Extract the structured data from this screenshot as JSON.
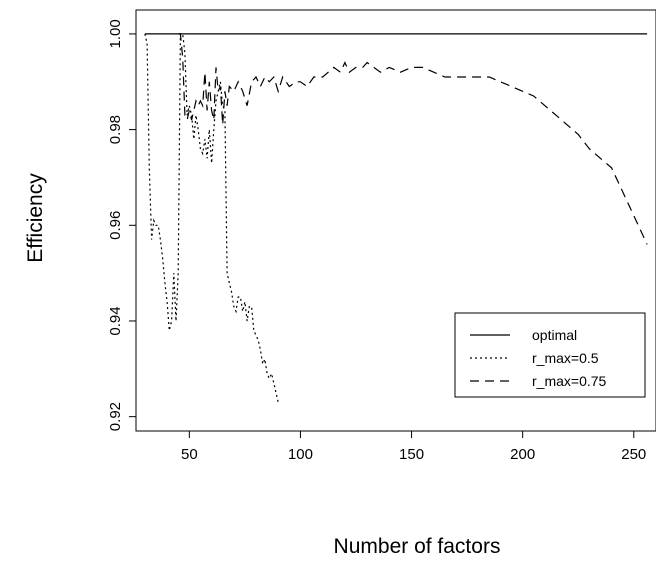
{
  "chart_data": {
    "type": "line",
    "title": "",
    "xlabel": "Number of factors",
    "ylabel": "Efficiency",
    "xlim": [
      26,
      260
    ],
    "ylim": [
      0.917,
      1.005
    ],
    "x_ticks": [
      50,
      100,
      150,
      200,
      250
    ],
    "x_tick_labels": [
      "50",
      "100",
      "150",
      "200",
      "250"
    ],
    "y_ticks": [
      0.92,
      0.94,
      0.96,
      0.98,
      1.0
    ],
    "y_tick_labels": [
      "0.92",
      "0.94",
      "0.96",
      "0.98",
      "1.00"
    ],
    "grid": false,
    "legend_position": "bottom-right",
    "series": [
      {
        "name": "optimal",
        "line_style": "solid",
        "color": "#000000",
        "x": [
          30,
          256
        ],
        "y": [
          1.0,
          1.0
        ]
      },
      {
        "name": "r_max=0.5",
        "line_style": "dotted",
        "color": "#000000",
        "x": [
          30,
          31,
          32,
          33,
          34,
          35,
          36,
          37,
          38,
          39,
          40,
          41,
          42,
          43,
          44,
          45,
          46,
          47,
          48,
          49,
          50,
          51,
          52,
          53,
          54,
          55,
          56,
          57,
          58,
          59,
          60,
          61,
          62,
          63,
          64,
          65,
          66,
          67,
          68,
          69,
          70,
          71,
          72,
          73,
          74,
          75,
          76,
          77,
          78,
          79,
          80,
          81,
          82,
          83,
          84,
          85,
          86,
          87,
          88,
          89,
          90
        ],
        "y": [
          1.0,
          0.998,
          0.972,
          0.957,
          0.961,
          0.96,
          0.96,
          0.957,
          0.953,
          0.948,
          0.944,
          0.938,
          0.94,
          0.95,
          0.94,
          0.95,
          1.0,
          1.0,
          0.996,
          0.983,
          0.985,
          0.983,
          0.978,
          0.983,
          0.98,
          0.976,
          0.975,
          0.978,
          0.974,
          0.98,
          0.973,
          0.98,
          0.986,
          0.988,
          0.99,
          0.985,
          0.984,
          0.95,
          0.948,
          0.946,
          0.943,
          0.942,
          0.945,
          0.945,
          0.942,
          0.944,
          0.94,
          0.943,
          0.943,
          0.938,
          0.937,
          0.936,
          0.934,
          0.931,
          0.932,
          0.929,
          0.928,
          0.929,
          0.927,
          0.925,
          0.923
        ]
      },
      {
        "name": "r_max=0.75",
        "line_style": "dashed",
        "color": "#000000",
        "x": [
          45,
          46,
          47,
          48,
          49,
          50,
          51,
          52,
          53,
          54,
          55,
          56,
          57,
          58,
          59,
          60,
          61,
          62,
          63,
          64,
          65,
          66,
          67,
          68,
          70,
          72,
          74,
          76,
          78,
          80,
          82,
          84,
          86,
          88,
          90,
          92,
          95,
          98,
          100,
          103,
          106,
          110,
          115,
          118,
          120,
          122,
          125,
          128,
          130,
          133,
          136,
          140,
          145,
          150,
          155,
          160,
          165,
          170,
          175,
          180,
          185,
          190,
          195,
          200,
          205,
          210,
          215,
          220,
          225,
          230,
          235,
          240,
          245,
          250,
          256
        ],
        "y": [
          1.0,
          1.0,
          0.995,
          0.983,
          0.982,
          0.984,
          0.982,
          0.984,
          0.986,
          0.985,
          0.986,
          0.985,
          0.992,
          0.984,
          0.99,
          0.984,
          0.982,
          0.993,
          0.988,
          0.989,
          0.981,
          0.988,
          0.985,
          0.989,
          0.988,
          0.99,
          0.988,
          0.985,
          0.99,
          0.991,
          0.989,
          0.991,
          0.99,
          0.991,
          0.988,
          0.991,
          0.989,
          0.99,
          0.99,
          0.989,
          0.991,
          0.991,
          0.993,
          0.992,
          0.994,
          0.992,
          0.993,
          0.993,
          0.994,
          0.993,
          0.992,
          0.993,
          0.992,
          0.993,
          0.993,
          0.992,
          0.991,
          0.991,
          0.991,
          0.991,
          0.991,
          0.99,
          0.989,
          0.988,
          0.987,
          0.985,
          0.983,
          0.981,
          0.979,
          0.976,
          0.974,
          0.972,
          0.967,
          0.962,
          0.956
        ]
      }
    ]
  }
}
